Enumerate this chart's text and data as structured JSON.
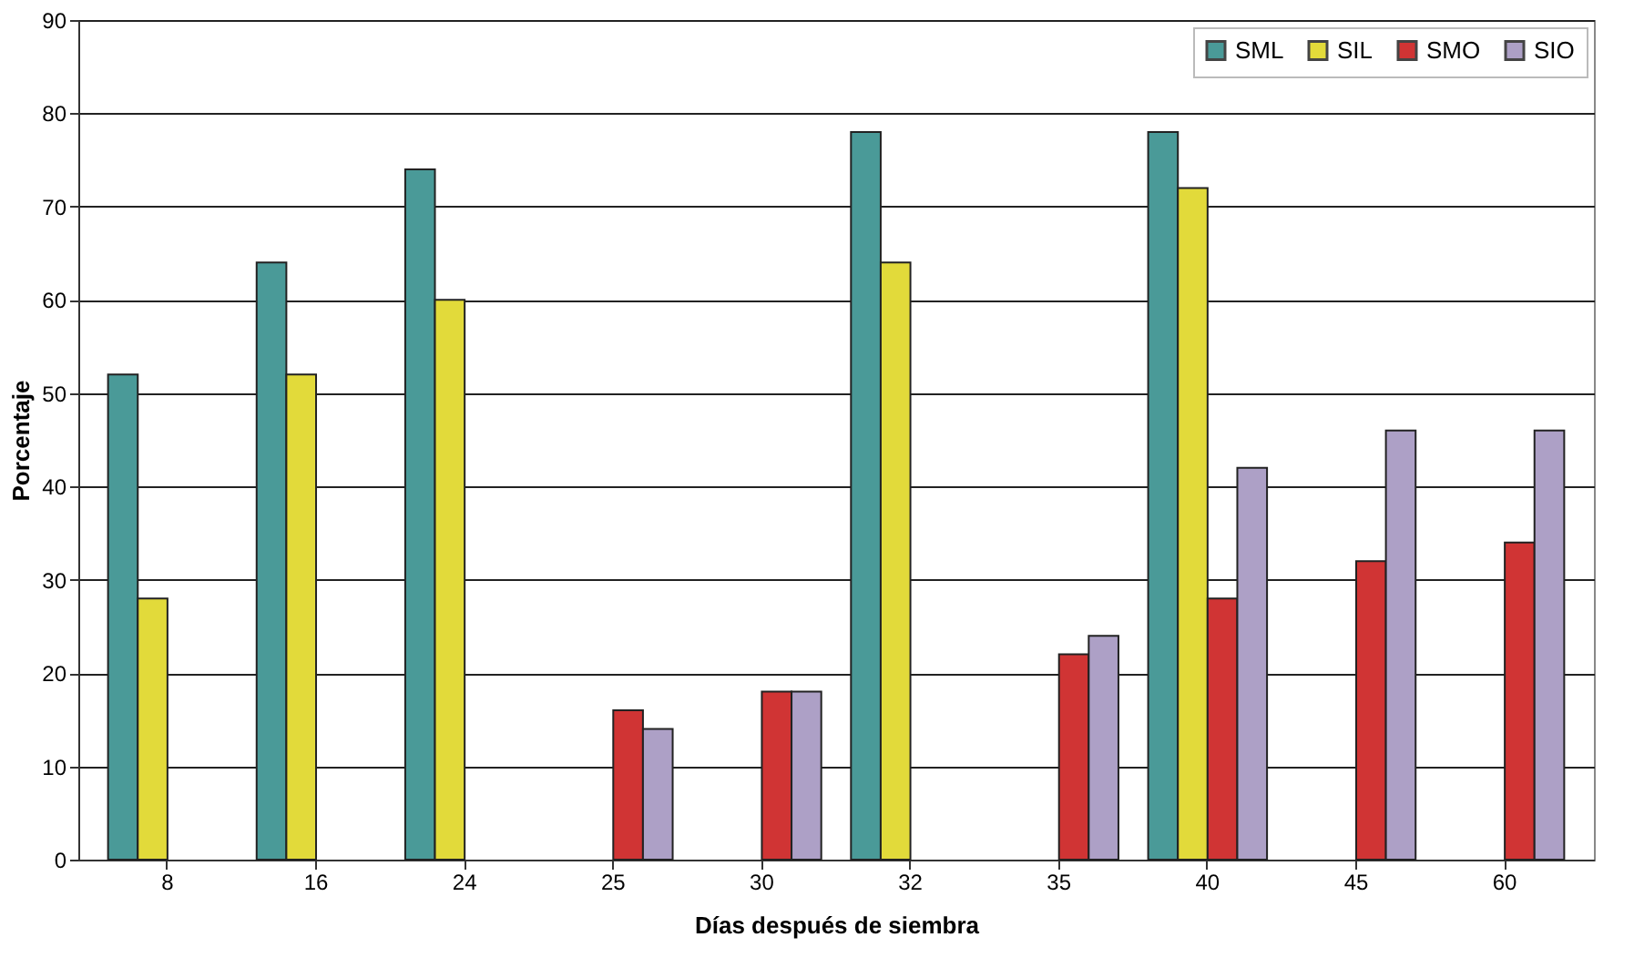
{
  "chart_data": {
    "type": "bar",
    "xlabel": "Días después de siembra",
    "ylabel": "Porcentaje",
    "categories": [
      "8",
      "16",
      "24",
      "25",
      "30",
      "32",
      "35",
      "40",
      "45",
      "60"
    ],
    "series": [
      {
        "name": "SML",
        "color": "#4a9a98",
        "values": [
          52,
          64,
          74,
          null,
          null,
          78,
          null,
          78,
          null,
          null
        ]
      },
      {
        "name": "SIL",
        "color": "#e2da3a",
        "values": [
          28,
          52,
          60,
          null,
          null,
          64,
          null,
          72,
          null,
          null
        ]
      },
      {
        "name": "SMO",
        "color": "#d03434",
        "values": [
          null,
          null,
          null,
          16,
          18,
          null,
          22,
          28,
          32,
          34
        ]
      },
      {
        "name": "SIO",
        "color": "#ada0c6",
        "values": [
          null,
          null,
          null,
          14,
          18,
          null,
          24,
          42,
          46,
          46
        ]
      }
    ],
    "ylim": [
      0,
      90
    ],
    "yticks": [
      0,
      10,
      20,
      30,
      40,
      50,
      60,
      70,
      80,
      90
    ],
    "grid": "y",
    "legend": "top right"
  }
}
